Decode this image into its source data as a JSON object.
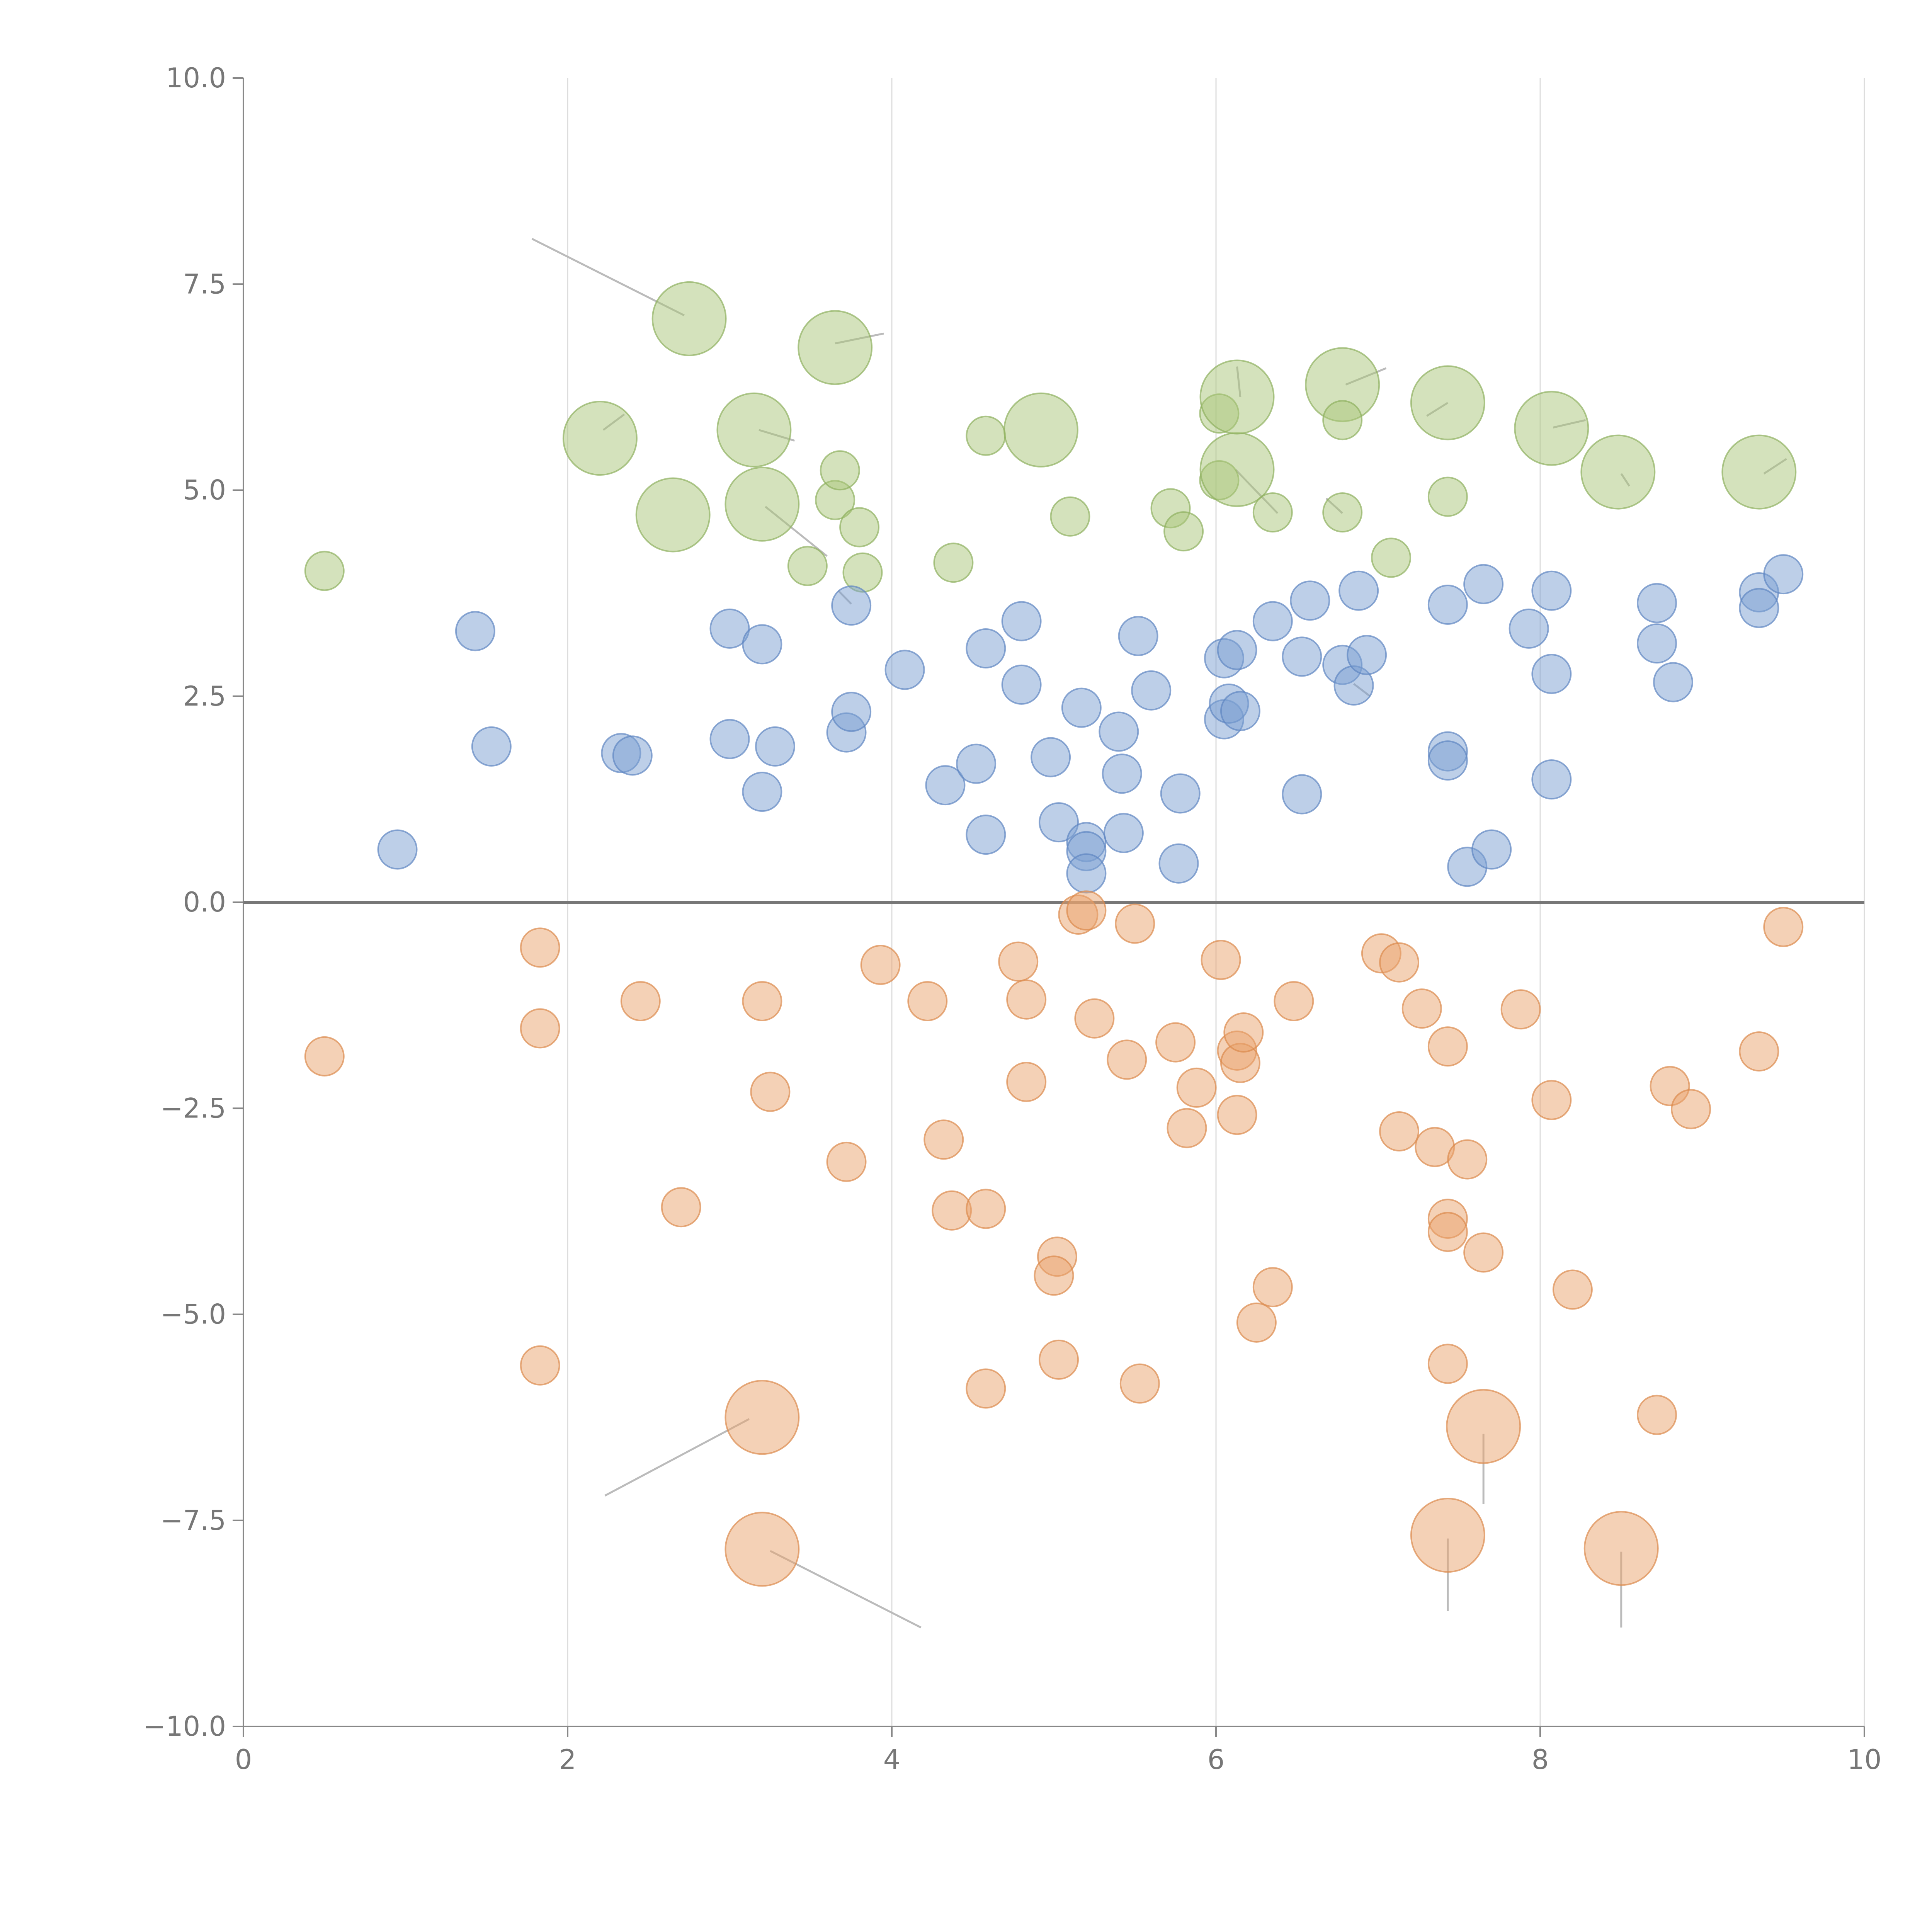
{
  "chart_data": {
    "type": "scatter",
    "title": "",
    "xlabel": "",
    "ylabel": "",
    "xlim": [
      0,
      10
    ],
    "ylim": [
      -10,
      10
    ],
    "x_ticks": [
      0,
      2,
      4,
      6,
      8,
      10
    ],
    "x_tick_labels": [
      "0",
      "2",
      "4",
      "6",
      "8",
      "10"
    ],
    "y_ticks": [
      10,
      7.5,
      5,
      2.5,
      0,
      -2.5,
      -5,
      -7.5,
      -10
    ],
    "y_tick_labels": [
      "10.0",
      "7.5",
      "5.0",
      "2.5",
      "0.0",
      "−2.5",
      "−5.0",
      "−7.5",
      "−10.0"
    ],
    "x_grid": true,
    "y_grid": false,
    "zero_line": true,
    "series": [
      {
        "name": "green",
        "color": "#a9c67a",
        "stroke": "#8fb060",
        "points": [
          [
            0.5,
            4.02,
            1
          ],
          [
            2.2,
            5.63,
            2
          ],
          [
            2.65,
            4.7,
            2
          ],
          [
            2.75,
            7.08,
            2
          ],
          [
            3.15,
            5.73,
            2
          ],
          [
            3.2,
            4.83,
            2
          ],
          [
            3.48,
            4.08,
            1
          ],
          [
            3.65,
            4.88,
            1
          ],
          [
            3.68,
            5.24,
            1
          ],
          [
            3.65,
            6.73,
            2
          ],
          [
            3.8,
            4.55,
            1
          ],
          [
            3.82,
            4.0,
            1
          ],
          [
            4.38,
            4.12,
            1
          ],
          [
            4.58,
            5.66,
            1
          ],
          [
            4.92,
            5.73,
            2
          ],
          [
            5.1,
            4.68,
            1
          ],
          [
            5.72,
            4.78,
            1
          ],
          [
            5.8,
            4.5,
            1
          ],
          [
            6.02,
            5.93,
            1
          ],
          [
            6.02,
            5.12,
            1
          ],
          [
            6.13,
            5.25,
            2
          ],
          [
            6.13,
            6.13,
            2
          ],
          [
            6.35,
            4.73,
            1
          ],
          [
            6.78,
            6.28,
            2
          ],
          [
            6.78,
            5.85,
            1
          ],
          [
            6.78,
            4.73,
            1
          ],
          [
            7.08,
            4.18,
            1
          ],
          [
            7.43,
            6.06,
            2
          ],
          [
            7.43,
            4.92,
            1
          ],
          [
            8.07,
            5.75,
            2
          ],
          [
            8.48,
            5.22,
            2
          ],
          [
            9.35,
            5.22,
            2
          ]
        ]
      },
      {
        "name": "blue",
        "color": "#7b9fd2",
        "stroke": "#5f86c2",
        "points": [
          [
            0.95,
            0.64,
            1
          ],
          [
            1.43,
            3.29,
            1
          ],
          [
            1.53,
            1.89,
            1
          ],
          [
            2.33,
            1.81,
            1
          ],
          [
            2.4,
            1.78,
            1
          ],
          [
            3.0,
            3.32,
            1
          ],
          [
            3.0,
            1.98,
            1
          ],
          [
            3.2,
            3.13,
            1
          ],
          [
            3.2,
            1.34,
            1
          ],
          [
            3.28,
            1.89,
            1
          ],
          [
            3.72,
            2.06,
            1
          ],
          [
            3.75,
            2.31,
            1
          ],
          [
            3.75,
            3.6,
            1
          ],
          [
            4.08,
            2.82,
            1
          ],
          [
            4.33,
            1.42,
            1
          ],
          [
            4.52,
            1.68,
            1
          ],
          [
            4.58,
            3.08,
            1
          ],
          [
            4.58,
            0.82,
            1
          ],
          [
            4.8,
            2.64,
            1
          ],
          [
            4.8,
            3.41,
            1
          ],
          [
            4.98,
            1.76,
            1
          ],
          [
            5.03,
            0.97,
            1
          ],
          [
            5.17,
            2.36,
            1
          ],
          [
            5.2,
            0.73,
            1
          ],
          [
            5.2,
            0.62,
            1
          ],
          [
            5.2,
            0.35,
            1
          ],
          [
            5.4,
            2.07,
            1
          ],
          [
            5.42,
            1.56,
            1
          ],
          [
            5.43,
            0.84,
            1
          ],
          [
            5.52,
            3.23,
            1
          ],
          [
            5.6,
            2.57,
            1
          ],
          [
            5.78,
            1.32,
            1
          ],
          [
            5.77,
            0.47,
            1
          ],
          [
            6.05,
            2.96,
            1
          ],
          [
            6.05,
            2.22,
            1
          ],
          [
            6.08,
            2.41,
            1
          ],
          [
            6.13,
            3.06,
            1
          ],
          [
            6.15,
            2.32,
            1
          ],
          [
            6.35,
            3.41,
            1
          ],
          [
            6.53,
            2.98,
            1
          ],
          [
            6.53,
            1.31,
            1
          ],
          [
            6.58,
            3.66,
            1
          ],
          [
            6.78,
            2.88,
            1
          ],
          [
            6.88,
            3.78,
            1
          ],
          [
            6.85,
            2.63,
            1
          ],
          [
            6.93,
            3.0,
            1
          ],
          [
            7.43,
            3.61,
            1
          ],
          [
            7.43,
            1.83,
            1
          ],
          [
            7.43,
            1.72,
            1
          ],
          [
            7.55,
            0.43,
            1
          ],
          [
            7.65,
            3.86,
            1
          ],
          [
            7.7,
            0.64,
            1
          ],
          [
            7.93,
            3.32,
            1
          ],
          [
            8.07,
            3.78,
            1
          ],
          [
            8.07,
            2.77,
            1
          ],
          [
            8.07,
            1.49,
            1
          ],
          [
            8.72,
            3.63,
            1
          ],
          [
            8.72,
            3.14,
            1
          ],
          [
            8.82,
            2.67,
            1
          ],
          [
            9.35,
            3.76,
            1
          ],
          [
            9.35,
            3.57,
            1
          ],
          [
            9.5,
            3.98,
            1
          ]
        ]
      },
      {
        "name": "orange",
        "color": "#e9a46e",
        "stroke": "#db8a4d",
        "points": [
          [
            0.5,
            -1.87,
            1
          ],
          [
            1.83,
            -0.55,
            1
          ],
          [
            1.83,
            -1.53,
            1
          ],
          [
            1.83,
            -5.62,
            1
          ],
          [
            2.45,
            -1.2,
            1
          ],
          [
            2.7,
            -3.7,
            1
          ],
          [
            3.2,
            -1.2,
            1
          ],
          [
            3.25,
            -2.3,
            1
          ],
          [
            3.2,
            -6.25,
            2
          ],
          [
            3.2,
            -7.85,
            2
          ],
          [
            3.72,
            -3.15,
            1
          ],
          [
            3.93,
            -0.76,
            1
          ],
          [
            4.22,
            -1.2,
            1
          ],
          [
            4.32,
            -2.88,
            1
          ],
          [
            4.37,
            -3.74,
            1
          ],
          [
            4.58,
            -3.72,
            1
          ],
          [
            4.58,
            -5.9,
            1
          ],
          [
            4.78,
            -0.72,
            1
          ],
          [
            4.83,
            -1.18,
            1
          ],
          [
            4.83,
            -2.18,
            1
          ],
          [
            5.02,
            -4.3,
            1
          ],
          [
            5.0,
            -4.53,
            1
          ],
          [
            5.03,
            -5.55,
            1
          ],
          [
            5.15,
            -0.15,
            1
          ],
          [
            5.2,
            -0.1,
            1
          ],
          [
            5.25,
            -1.41,
            1
          ],
          [
            5.45,
            -1.91,
            1
          ],
          [
            5.5,
            -0.26,
            1
          ],
          [
            5.53,
            -5.84,
            1
          ],
          [
            5.75,
            -1.7,
            1
          ],
          [
            5.82,
            -2.74,
            1
          ],
          [
            5.88,
            -2.25,
            1
          ],
          [
            6.03,
            -0.7,
            1
          ],
          [
            6.13,
            -1.8,
            1
          ],
          [
            6.15,
            -1.95,
            1
          ],
          [
            6.17,
            -1.58,
            1
          ],
          [
            6.13,
            -2.58,
            1
          ],
          [
            6.25,
            -5.1,
            1
          ],
          [
            6.35,
            -4.67,
            1
          ],
          [
            6.48,
            -1.2,
            1
          ],
          [
            7.02,
            -0.62,
            1
          ],
          [
            7.13,
            -0.73,
            1
          ],
          [
            7.13,
            -2.78,
            1
          ],
          [
            7.27,
            -1.29,
            1
          ],
          [
            7.35,
            -2.97,
            1
          ],
          [
            7.43,
            -1.75,
            1
          ],
          [
            7.43,
            -3.84,
            1
          ],
          [
            7.43,
            -4.0,
            1
          ],
          [
            7.43,
            -5.6,
            1
          ],
          [
            7.43,
            -7.68,
            2
          ],
          [
            7.55,
            -3.12,
            1
          ],
          [
            7.65,
            -4.25,
            1
          ],
          [
            7.65,
            -6.36,
            2
          ],
          [
            7.88,
            -1.3,
            1
          ],
          [
            8.07,
            -2.4,
            1
          ],
          [
            8.2,
            -4.7,
            1
          ],
          [
            8.5,
            -7.84,
            2
          ],
          [
            8.72,
            -6.22,
            1
          ],
          [
            8.8,
            -2.23,
            1
          ],
          [
            8.93,
            -2.51,
            1
          ],
          [
            9.35,
            -1.81,
            1
          ],
          [
            9.5,
            -0.3,
            1
          ]
        ]
      }
    ],
    "leader_lines": [
      [
        1.78,
        8.05,
        2.72,
        7.12
      ],
      [
        3.65,
        6.78,
        3.95,
        6.9
      ],
      [
        2.22,
        5.73,
        2.35,
        5.92
      ],
      [
        3.18,
        5.73,
        3.4,
        5.6
      ],
      [
        3.22,
        4.8,
        3.6,
        4.2
      ],
      [
        6.15,
        6.13,
        6.13,
        6.5
      ],
      [
        6.8,
        6.28,
        7.05,
        6.48
      ],
      [
        7.43,
        6.06,
        7.3,
        5.9
      ],
      [
        8.08,
        5.76,
        8.28,
        5.85
      ],
      [
        8.5,
        5.2,
        8.55,
        5.05
      ],
      [
        9.38,
        5.2,
        9.52,
        5.38
      ],
      [
        6.12,
        5.25,
        6.38,
        4.72
      ],
      [
        6.78,
        4.72,
        6.68,
        4.9
      ],
      [
        3.75,
        3.62,
        3.67,
        3.78
      ],
      [
        6.85,
        2.65,
        6.95,
        2.5
      ],
      [
        3.12,
        -6.27,
        2.23,
        -7.2
      ],
      [
        3.25,
        -7.87,
        4.18,
        -8.8
      ],
      [
        7.65,
        -6.45,
        7.65,
        -7.3
      ],
      [
        7.43,
        -7.72,
        7.43,
        -8.6
      ],
      [
        8.5,
        -7.88,
        8.5,
        -8.8
      ]
    ]
  }
}
